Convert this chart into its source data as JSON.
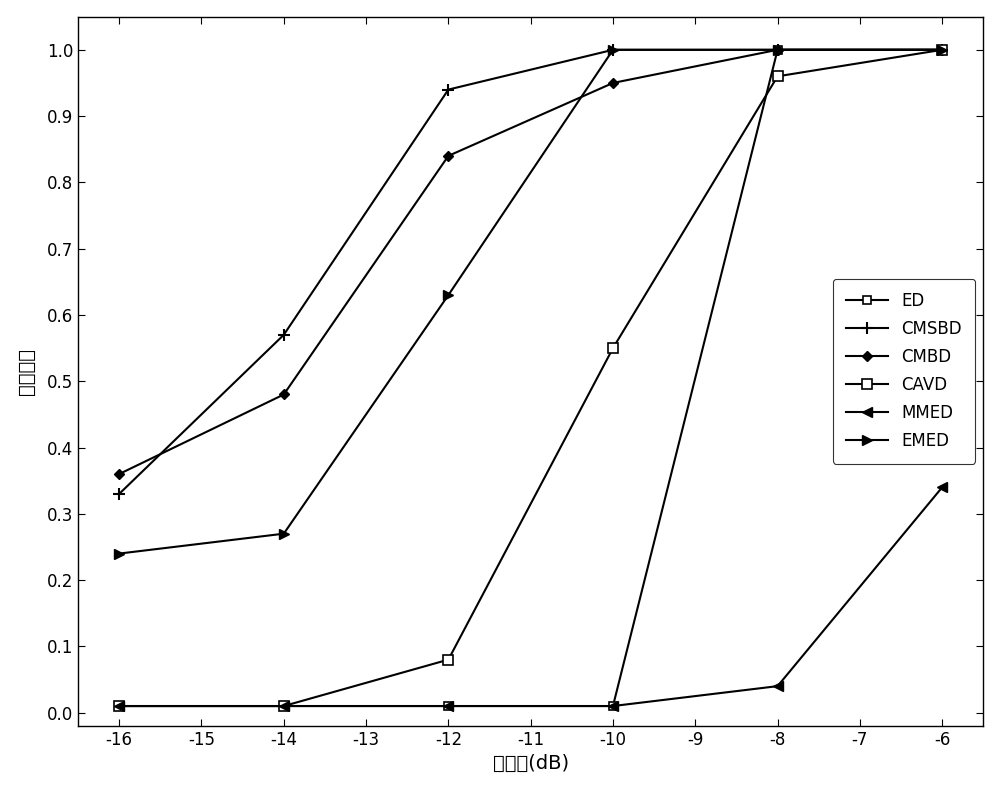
{
  "x": [
    -16,
    -14,
    -12,
    -10,
    -8,
    -6
  ],
  "ED": [
    0.01,
    0.01,
    0.01,
    0.01,
    1.0,
    1.0
  ],
  "CMSBD": [
    0.33,
    0.57,
    0.94,
    1.0,
    1.0,
    1.0
  ],
  "CMBD": [
    0.36,
    0.48,
    0.84,
    0.95,
    1.0,
    1.0
  ],
  "CAVD": [
    0.01,
    0.01,
    0.08,
    0.55,
    0.96,
    1.0
  ],
  "MMED": [
    0.01,
    0.01,
    0.01,
    0.01,
    0.04,
    0.34
  ],
  "EMED": [
    0.24,
    0.27,
    0.63,
    1.0,
    1.0,
    1.0
  ],
  "xlabel": "信噪比(dB)",
  "ylabel": "检测概率",
  "xlim": [
    -16.5,
    -5.5
  ],
  "ylim": [
    -0.02,
    1.05
  ],
  "xticks": [
    -16,
    -15,
    -14,
    -13,
    -12,
    -11,
    -10,
    -9,
    -8,
    -7,
    -6
  ],
  "yticks": [
    0.0,
    0.1,
    0.2,
    0.3,
    0.4,
    0.5,
    0.6,
    0.7,
    0.8,
    0.9,
    1.0
  ],
  "line_color": "#000000",
  "bg_color": "#ffffff",
  "legend_loc": "center right",
  "figsize": [
    10.0,
    7.9
  ],
  "dpi": 100
}
